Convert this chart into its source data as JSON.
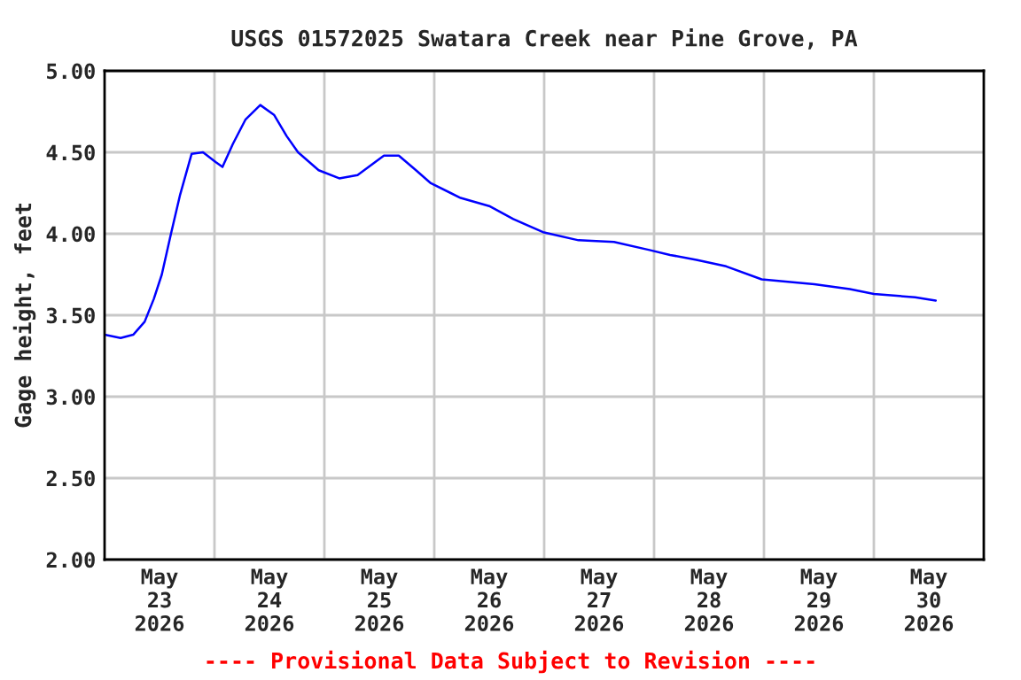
{
  "chart_data": {
    "type": "line",
    "title": "USGS 01572025 Swatara Creek near Pine Grove, PA",
    "ylabel": "Gage height, feet",
    "annotations": [
      "---- Provisional Data Subject to Revision ----"
    ],
    "x": [
      "2026-05-23T00:00",
      "2026-05-23T03:30",
      "2026-05-23T06:15",
      "2026-05-23T08:45",
      "2026-05-23T10:45",
      "2026-05-23T12:30",
      "2026-05-23T14:30",
      "2026-05-23T16:30",
      "2026-05-23T19:00",
      "2026-05-23T21:30",
      "2026-05-24T00:15",
      "2026-05-24T01:45",
      "2026-05-24T04:00",
      "2026-05-24T06:45",
      "2026-05-24T10:00",
      "2026-05-24T13:00",
      "2026-05-24T15:45",
      "2026-05-24T18:15",
      "2026-05-24T22:45",
      "2026-05-25T03:15",
      "2026-05-25T07:15",
      "2026-05-25T13:00",
      "2026-05-25T16:15",
      "2026-05-25T20:00",
      "2026-05-25T23:15",
      "2026-05-26T05:45",
      "2026-05-26T12:00",
      "2026-05-26T17:15",
      "2026-05-26T23:45",
      "2026-05-27T07:30",
      "2026-05-27T15:15",
      "2026-05-27T23:00",
      "2026-05-28T03:30",
      "2026-05-28T09:15",
      "2026-05-28T15:45",
      "2026-05-28T23:30",
      "2026-05-29T11:00",
      "2026-05-29T18:45",
      "2026-05-30T00:00",
      "2026-05-30T09:00",
      "2026-05-30T13:30"
    ],
    "series": [
      {
        "color": "#0000ff",
        "values": [
          3.38,
          3.36,
          3.38,
          3.46,
          3.6,
          3.75,
          4.0,
          4.24,
          4.49,
          4.5,
          4.44,
          4.41,
          4.55,
          4.7,
          4.79,
          4.73,
          4.6,
          4.5,
          4.39,
          4.34,
          4.36,
          4.48,
          4.48,
          4.39,
          4.31,
          4.22,
          4.17,
          4.09,
          4.01,
          3.96,
          3.95,
          3.9,
          3.87,
          3.84,
          3.8,
          3.72,
          3.69,
          3.66,
          3.63,
          3.61,
          3.59
        ]
      }
    ],
    "xlim": [
      "2026-05-23T00:00",
      "2026-05-31T00:00"
    ],
    "xticks": [
      {
        "value": "2026-05-23T12:00",
        "label": "May\n23\n2026"
      },
      {
        "value": "2026-05-24T12:00",
        "label": "May\n24\n2026"
      },
      {
        "value": "2026-05-25T12:00",
        "label": "May\n25\n2026"
      },
      {
        "value": "2026-05-26T12:00",
        "label": "May\n26\n2026"
      },
      {
        "value": "2026-05-27T12:00",
        "label": "May\n27\n2026"
      },
      {
        "value": "2026-05-28T12:00",
        "label": "May\n28\n2026"
      },
      {
        "value": "2026-05-29T12:00",
        "label": "May\n29\n2026"
      },
      {
        "value": "2026-05-30T12:00",
        "label": "May\n30\n2026"
      },
      {
        "value": "2026-05-24T00:00",
        "label": null
      },
      {
        "value": "2026-05-25T00:00",
        "label": null
      },
      {
        "value": "2026-05-26T00:00",
        "label": null
      },
      {
        "value": "2026-05-27T00:00",
        "label": null
      },
      {
        "value": "2026-05-28T00:00",
        "label": null
      },
      {
        "value": "2026-05-29T00:00",
        "label": null
      },
      {
        "value": "2026-05-30T00:00",
        "label": null
      }
    ],
    "ylim": [
      2.0,
      5.0
    ],
    "yticks": [
      {
        "value": 2.0,
        "label": "2.00"
      },
      {
        "value": 2.5,
        "label": "2.50"
      },
      {
        "value": 3.0,
        "label": "3.00"
      },
      {
        "value": 3.5,
        "label": "3.50"
      },
      {
        "value": 4.0,
        "label": "4.00"
      },
      {
        "value": 4.5,
        "label": "4.50"
      },
      {
        "value": 5.0,
        "label": "5.00"
      }
    ],
    "grid": true,
    "legend": false
  }
}
